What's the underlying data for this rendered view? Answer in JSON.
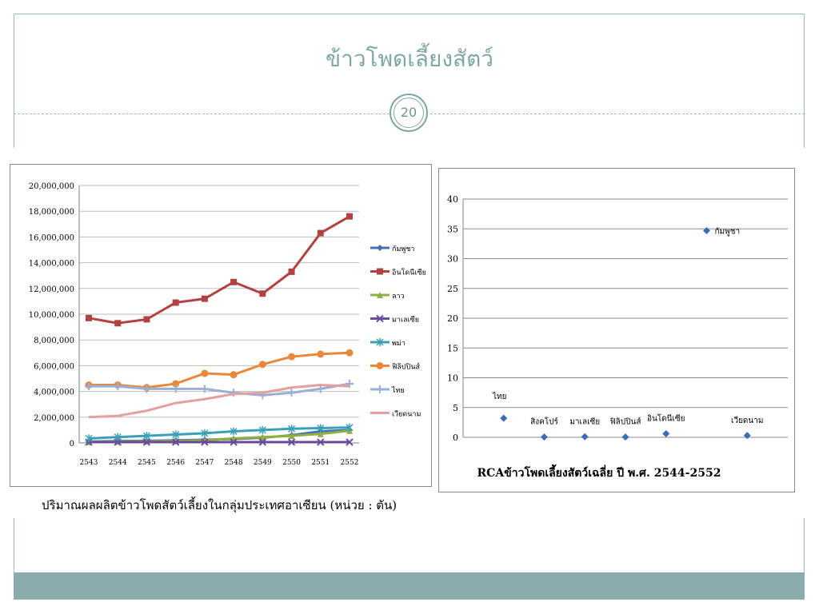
{
  "slide": {
    "title": "ข้าวโพดเลี้ยงสัตว์",
    "page_number": "20",
    "caption": "ปริมาณผลผลิตข้าวโพดสัตว์เลี้ยงในกลุ่มประเทศอาเซียน   (หน่วย : ตัน)",
    "colors": {
      "accent": "#7fa6a6",
      "footer": "#8aacaa"
    }
  },
  "chart_data": [
    {
      "type": "line",
      "title": "",
      "xlabel": "",
      "ylabel": "",
      "x": [
        "2543",
        "2544",
        "2545",
        "2546",
        "2547",
        "2548",
        "2549",
        "2550",
        "2551",
        "2552"
      ],
      "ylim": [
        0,
        20000000
      ],
      "y_ticks": [
        "0",
        "2,000,000",
        "4,000,000",
        "6,000,000",
        "8,000,000",
        "10,000,000",
        "12,000,000",
        "14,000,000",
        "16,000,000",
        "18,000,000",
        "20,000,000"
      ],
      "grid": true,
      "legend": "right",
      "series": [
        {
          "name": "กัมพูชา",
          "color": "#4a6fb0",
          "marker": "diamond",
          "values": [
            100000,
            150000,
            160000,
            200000,
            250000,
            300000,
            400000,
            600000,
            900000,
            1000000
          ]
        },
        {
          "name": "อินโดนีเซีย",
          "color": "#b24242",
          "marker": "square",
          "values": [
            9700000,
            9300000,
            9600000,
            10900000,
            11200000,
            12500000,
            11600000,
            13300000,
            16300000,
            17600000
          ]
        },
        {
          "name": "ลาว",
          "color": "#8faf3e",
          "marker": "triangle",
          "values": [
            80000,
            100000,
            120000,
            150000,
            200000,
            350000,
            450000,
            550000,
            700000,
            950000
          ]
        },
        {
          "name": "มาเลเซีย",
          "color": "#6a4a9a",
          "marker": "x",
          "values": [
            60000,
            60000,
            60000,
            60000,
            60000,
            60000,
            60000,
            60000,
            60000,
            60000
          ]
        },
        {
          "name": "พม่า",
          "color": "#3aa0b8",
          "marker": "star",
          "values": [
            350000,
            450000,
            550000,
            650000,
            750000,
            900000,
            1000000,
            1100000,
            1150000,
            1200000
          ]
        },
        {
          "name": "ฟิลิปปินส์",
          "color": "#e8883a",
          "marker": "circle",
          "values": [
            4500000,
            4500000,
            4300000,
            4600000,
            5400000,
            5300000,
            6100000,
            6700000,
            6900000,
            7000000
          ]
        },
        {
          "name": "ไทย",
          "color": "#9aaed6",
          "marker": "plus",
          "values": [
            4400000,
            4400000,
            4200000,
            4200000,
            4200000,
            3900000,
            3700000,
            3900000,
            4200000,
            4600000
          ]
        },
        {
          "name": "เวียดนาม",
          "color": "#e3a0a0",
          "marker": "none",
          "values": [
            2000000,
            2100000,
            2500000,
            3100000,
            3400000,
            3800000,
            3900000,
            4300000,
            4500000,
            4400000
          ]
        }
      ]
    },
    {
      "type": "scatter",
      "title": "RCAข้าวโพดเลี้ยงสัตว์เฉลี่ย ปี พ.ศ. 2544-2552",
      "xlabel": "",
      "ylabel": "",
      "ylim": [
        0,
        40
      ],
      "y_ticks": [
        "0",
        "5",
        "10",
        "15",
        "20",
        "25",
        "30",
        "35",
        "40"
      ],
      "grid": true,
      "color": "#3b6cb5",
      "points": [
        {
          "label": "ไทย",
          "x": 1,
          "y": 3.2
        },
        {
          "label": "สิงคโปร์",
          "x": 2,
          "y": 0.05
        },
        {
          "label": "มาเลเซีย",
          "x": 3,
          "y": 0.1
        },
        {
          "label": "ฟิลิปปินส์",
          "x": 4,
          "y": 0.05
        },
        {
          "label": "อินโดนีเซีย",
          "x": 5,
          "y": 0.6
        },
        {
          "label": "กัมพูชา",
          "x": 6,
          "y": 34.7
        },
        {
          "label": "เวียดนาม",
          "x": 7,
          "y": 0.3
        }
      ],
      "xlim": [
        0,
        8
      ]
    }
  ]
}
